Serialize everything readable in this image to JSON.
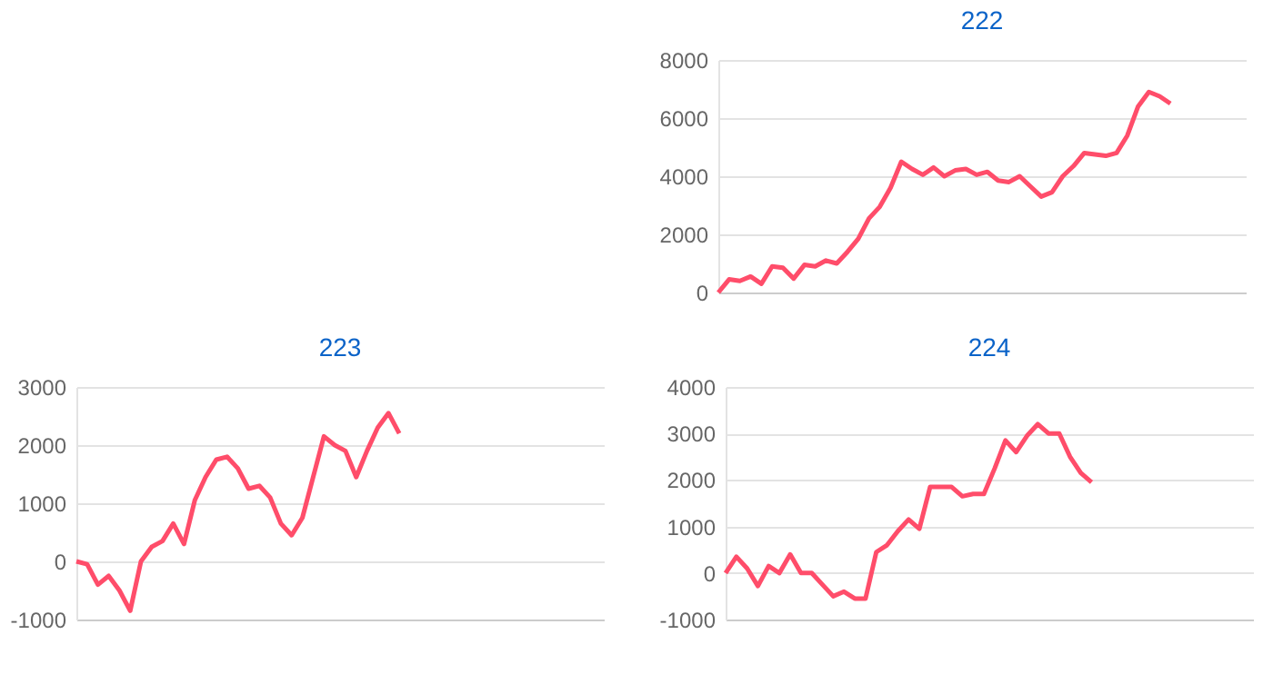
{
  "chart_data": [
    {
      "type": "line",
      "title": "222",
      "categories": [
        null,
        null,
        null,
        null,
        null,
        null,
        null,
        null,
        null,
        null,
        null,
        null,
        null,
        null,
        null,
        null,
        null,
        null,
        null,
        null,
        null,
        null,
        null,
        null,
        null,
        null,
        null,
        null,
        null,
        null,
        null,
        null,
        null,
        null,
        null,
        null,
        null,
        null,
        null,
        null,
        null,
        null,
        null,
        null,
        null,
        null,
        null,
        null,
        null,
        null
      ],
      "series": [
        {
          "color": "#ff4d6a",
          "values": [
            0,
            450,
            400,
            550,
            300,
            900,
            850,
            480,
            950,
            900,
            1100,
            1000,
            1400,
            1850,
            2550,
            2950,
            3600,
            4500,
            4250,
            4050,
            4300,
            4000,
            4200,
            4250,
            4050,
            4150,
            3850,
            3800,
            4000,
            3650,
            3300,
            3450,
            4000,
            4350,
            4800,
            4750,
            4700,
            4800,
            5400,
            6400,
            6900,
            6750,
            6500,
            null,
            null,
            null,
            null,
            null,
            null,
            null
          ]
        }
      ],
      "ylim": [
        0,
        8000
      ],
      "yticks": [
        0,
        2000,
        4000,
        6000,
        8000
      ],
      "grid": "y",
      "tick_labels": "y",
      "marker": "none",
      "line_style": "solid"
    },
    {
      "type": "line",
      "title": "223",
      "categories": [
        null,
        null,
        null,
        null,
        null,
        null,
        null,
        null,
        null,
        null,
        null,
        null,
        null,
        null,
        null,
        null,
        null,
        null,
        null,
        null,
        null,
        null,
        null,
        null,
        null,
        null,
        null,
        null,
        null,
        null,
        null,
        null,
        null,
        null,
        null,
        null,
        null,
        null,
        null,
        null,
        null,
        null,
        null,
        null,
        null,
        null,
        null,
        null,
        null,
        null
      ],
      "series": [
        {
          "color": "#ff4d6a",
          "values": [
            0,
            -50,
            -400,
            -250,
            -500,
            -850,
            0,
            250,
            350,
            650,
            300,
            1050,
            1450,
            1750,
            1800,
            1600,
            1250,
            1300,
            1100,
            650,
            450,
            750,
            1450,
            2150,
            2000,
            1900,
            1450,
            1900,
            2300,
            2550,
            2200,
            null,
            null,
            null,
            null,
            null,
            null,
            null,
            null,
            null,
            null,
            null,
            null,
            null,
            null,
            null,
            null,
            null,
            null,
            null
          ]
        }
      ],
      "ylim": [
        -1000,
        3000
      ],
      "yticks": [
        -1000,
        0,
        1000,
        2000,
        3000
      ],
      "grid": "y",
      "tick_labels": "y",
      "marker": "none",
      "line_style": "solid"
    },
    {
      "type": "line",
      "title": "224",
      "categories": [
        null,
        null,
        null,
        null,
        null,
        null,
        null,
        null,
        null,
        null,
        null,
        null,
        null,
        null,
        null,
        null,
        null,
        null,
        null,
        null,
        null,
        null,
        null,
        null,
        null,
        null,
        null,
        null,
        null,
        null,
        null,
        null,
        null,
        null,
        null,
        null,
        null,
        null,
        null,
        null,
        null,
        null,
        null,
        null,
        null,
        null,
        null,
        null,
        null,
        null
      ],
      "series": [
        {
          "color": "#ff4d6a",
          "values": [
            0,
            350,
            100,
            -280,
            150,
            0,
            400,
            0,
            0,
            -250,
            -500,
            -400,
            -550,
            -550,
            450,
            600,
            900,
            1150,
            950,
            1850,
            1850,
            1850,
            1650,
            1700,
            1700,
            2250,
            2850,
            2600,
            2950,
            3200,
            3000,
            3000,
            2500,
            2150,
            1950,
            null,
            null,
            null,
            null,
            null,
            null,
            null,
            null,
            null,
            null,
            null,
            null,
            null,
            null,
            null
          ]
        }
      ],
      "ylim": [
        -1000,
        4000
      ],
      "yticks": [
        -1000,
        0,
        1000,
        2000,
        3000,
        4000
      ],
      "grid": "y",
      "tick_labels": "y",
      "marker": "none",
      "line_style": "solid"
    }
  ]
}
